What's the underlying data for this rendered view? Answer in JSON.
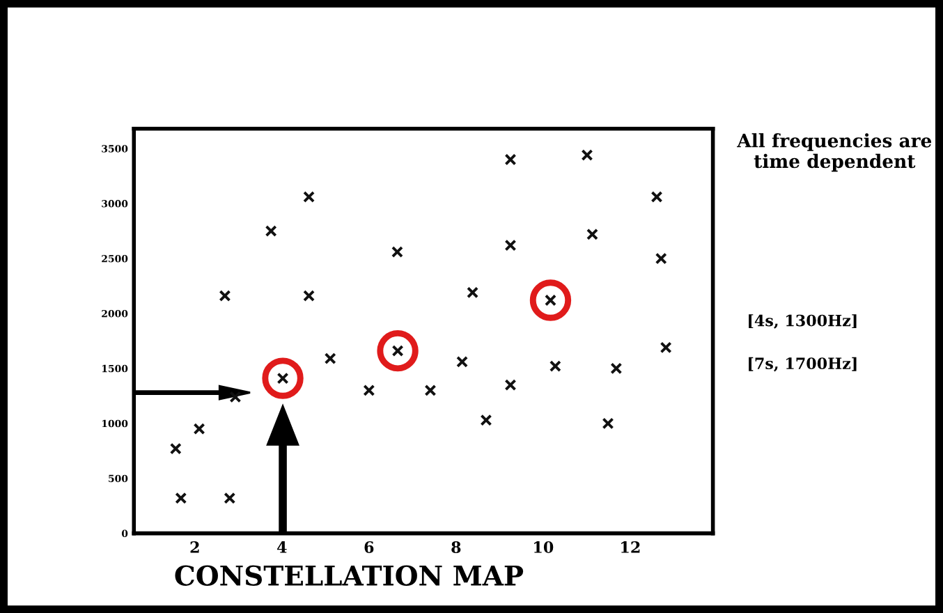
{
  "chart_data": {
    "type": "scatter",
    "title": "CONSTELLATION MAP",
    "annotations": [
      "All frequencies are time dependent",
      "[4s, 1300Hz]",
      "[7s, 1700Hz]"
    ],
    "series": [
      {
        "color": "#111111",
        "marker": "cross",
        "x": [
          1.68,
          2.8,
          1.56,
          2.1,
          2.93,
          2.69,
          3.75,
          4.62,
          4.62,
          4.02,
          5.11,
          6.0,
          6.66,
          6.65,
          7.41,
          8.14,
          8.38,
          8.69,
          9.25,
          9.25,
          9.25,
          10.17,
          10.28,
          11.01,
          11.13,
          11.68,
          11.49,
          12.61,
          12.71,
          12.82
        ],
        "values": [
          320,
          320,
          770,
          950,
          1240,
          2160,
          2750,
          3060,
          2160,
          1410,
          1590,
          1300,
          1660,
          2560,
          1300,
          1560,
          2190,
          1030,
          3400,
          2620,
          1350,
          2120,
          1520,
          3440,
          2720,
          1500,
          1000,
          3060,
          2500,
          1690
        ]
      },
      {
        "color": "#e01b1b",
        "marker": "circle",
        "x": [
          4.02,
          6.66,
          10.17
        ],
        "values": [
          1410,
          1660,
          2120
        ]
      }
    ],
    "xlim": [
      0.6,
      13.9
    ],
    "ylim": [
      0,
      3680
    ],
    "xticks": [
      2,
      4,
      6,
      8,
      10,
      12
    ],
    "yticks": [
      0,
      500,
      1000,
      1500,
      2000,
      2500,
      3000,
      3500
    ],
    "grid": false,
    "legend": false
  }
}
